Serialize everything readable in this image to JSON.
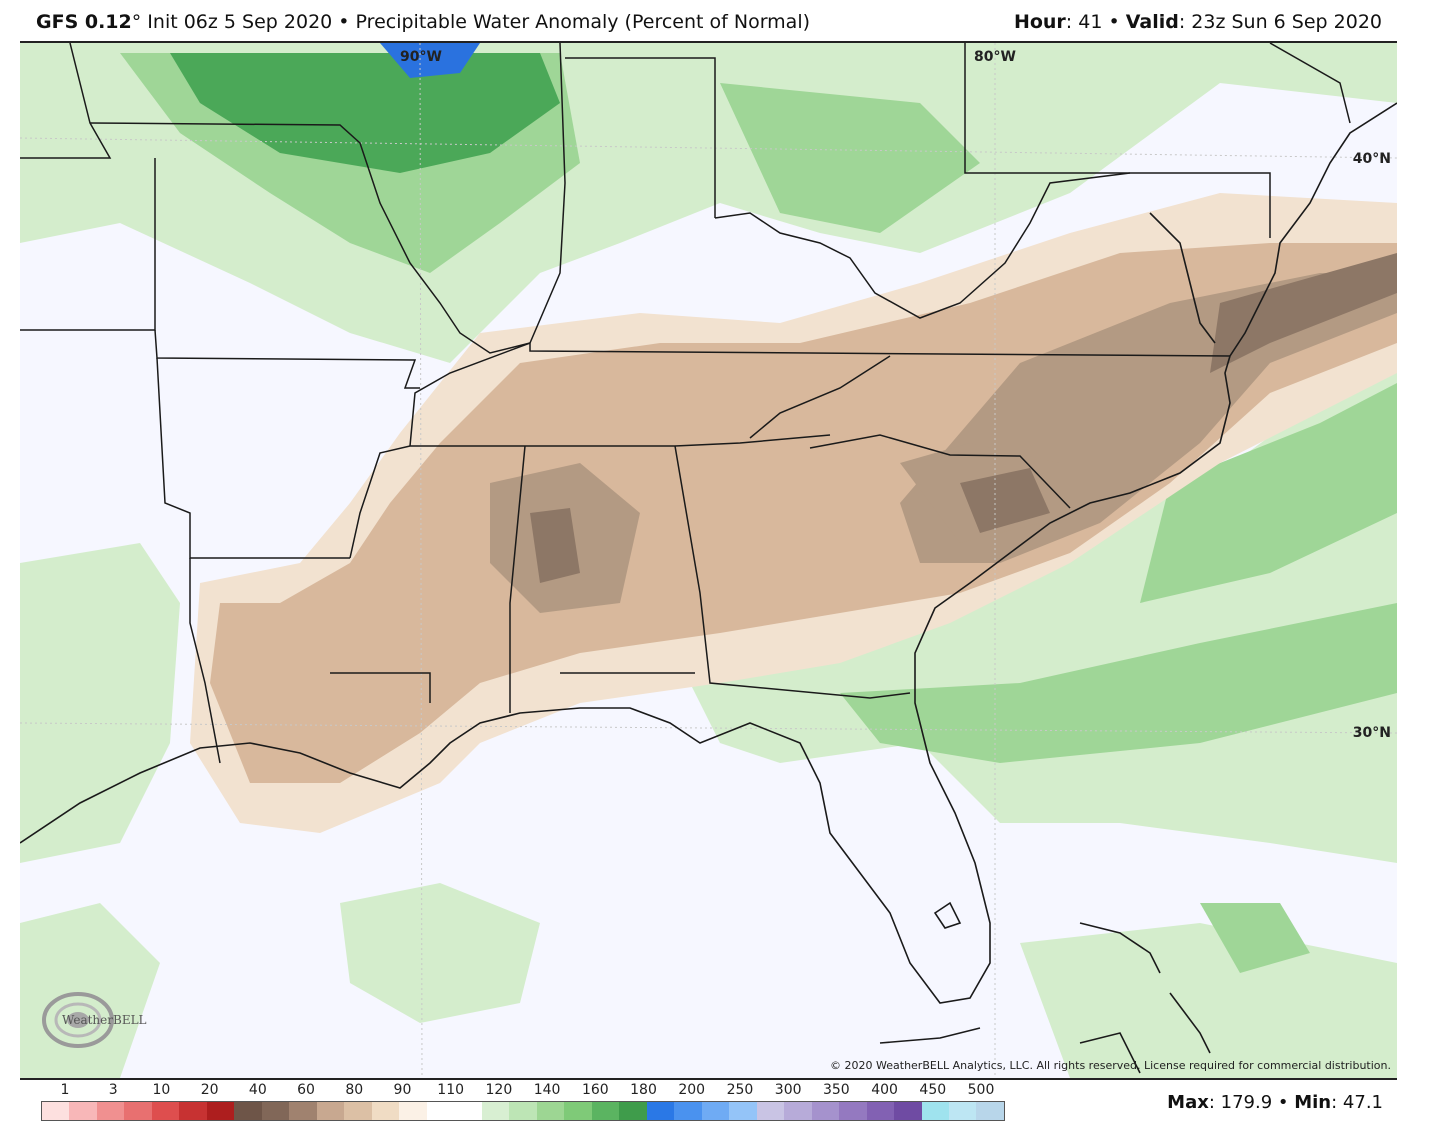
{
  "header": {
    "model": "GFS 0.12",
    "degree": "°",
    "init": " Init 06z 5 Sep 2020",
    "bullet1": " • ",
    "product": "Precipitable Water Anomaly (Percent of Normal)",
    "hour_label": "Hour",
    "hour_value": ": 41",
    "bullet2": " • ",
    "valid_label": "Valid",
    "valid_value": ": 23z Sun 6 Sep 2020"
  },
  "map": {
    "grid_labels": [
      "90°W",
      "80°W",
      "40°N",
      "30°N"
    ],
    "copyright": "© 2020 WeatherBELL Analytics, LLC. All rights reserved. License required for commercial distribution.",
    "logo_text": "WeatherBELL",
    "colors": {
      "ocean_background": "#f6f7ff",
      "brown_light": "#f2e2d0",
      "brown_mid": "#d8b89c",
      "brown_dark": "#b39a83",
      "brown_darkest": "#8d7766",
      "green_light": "#d4edcc",
      "green_mid": "#9fd697",
      "green_dark": "#4ba858",
      "blue": "#2a72df"
    }
  },
  "legend": {
    "ticks": [
      "1",
      "3",
      "10",
      "20",
      "40",
      "60",
      "80",
      "90",
      "110",
      "120",
      "140",
      "160",
      "180",
      "200",
      "250",
      "300",
      "350",
      "400",
      "450",
      "500"
    ],
    "colors": [
      "#fde0df",
      "#f8b7b8",
      "#f09090",
      "#e87070",
      "#de4e4e",
      "#c73232",
      "#ad1e1e",
      "#6e5548",
      "#816758",
      "#a0826f",
      "#c8a890",
      "#dcc0a5",
      "#f0dcc4",
      "#fbf1e6",
      "#ffffff",
      "#ffffff",
      "#d8efd2",
      "#bde5b5",
      "#9dd693",
      "#7fca78",
      "#5bb461",
      "#3f9c4b",
      "#2a78e6",
      "#4a92ef",
      "#6fabf4",
      "#94c4f8",
      "#c9c4e4",
      "#b7abd9",
      "#a592cd",
      "#9479c0",
      "#8261b3",
      "#6f4ba3",
      "#9fe3ee",
      "#bde6f3",
      "#b8d6ea"
    ],
    "max_label": "Max",
    "max_value": ": 179.9",
    "bullet": " • ",
    "min_label": "Min",
    "min_value": ": 47.1"
  }
}
